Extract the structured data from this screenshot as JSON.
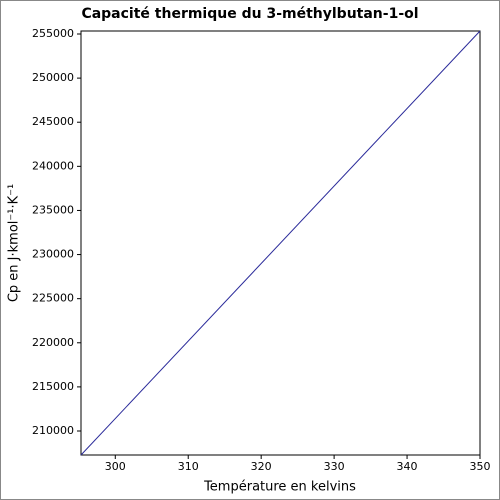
{
  "chart_data": {
    "type": "line",
    "title": "Capacité thermique du 3-méthylbutan-1-ol",
    "x_label": "Température en kelvins",
    "y_label": "Cp en J·kmol⁻¹·K⁻¹",
    "x": [
      295.3,
      350
    ],
    "series": [
      {
        "color": "#2b2b9a",
        "values": [
          207280,
          255340
        ]
      }
    ],
    "xlim": [
      295.3,
      350
    ],
    "xticks": [
      300,
      310,
      320,
      330,
      340,
      350
    ],
    "ylim": [
      207280,
      255340
    ],
    "yticks": [
      210000,
      215000,
      220000,
      225000,
      230000,
      235000,
      240000,
      245000,
      250000,
      255000
    ],
    "grid": false
  }
}
